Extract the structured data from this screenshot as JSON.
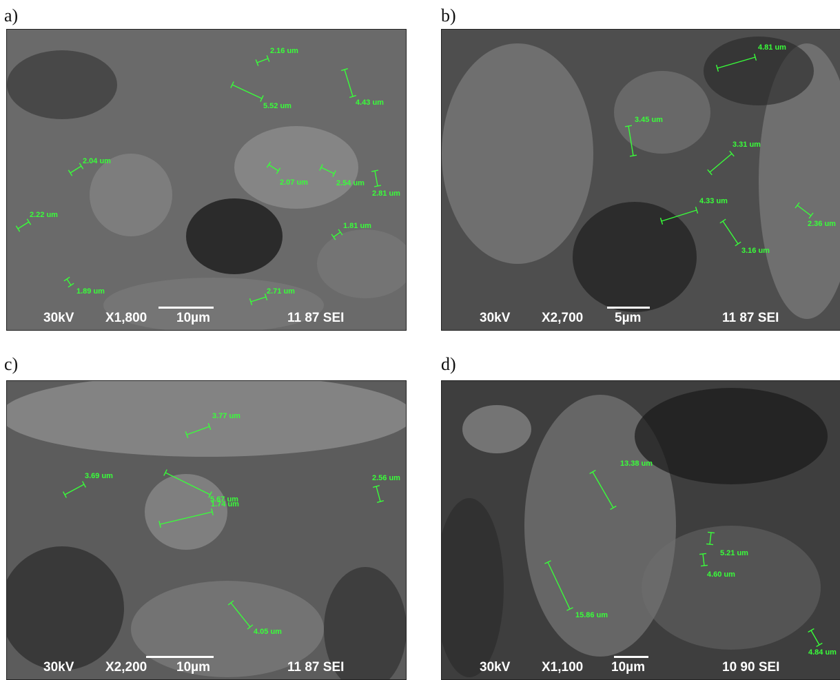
{
  "panels": [
    {
      "label": "a)",
      "voltage": "30kV",
      "magnification": "X1,800",
      "scale_bar": "10µm",
      "code": "11 87 SEI",
      "measurements": [
        "2.16 um",
        "5.52 um",
        "4.43 um",
        "2.04 um",
        "2.07 um",
        "2.54 um",
        "2.81 um",
        "2.22 um",
        "1.81 um",
        "1.89 um",
        "2.71 um"
      ]
    },
    {
      "label": "b)",
      "voltage": "30kV",
      "magnification": "X2,700",
      "scale_bar": "5µm",
      "code": "11 87 SEI",
      "measurements": [
        "4.81 um",
        "3.45 um",
        "3.31 um",
        "4.33 um",
        "2.36 um",
        "3.16 um"
      ]
    },
    {
      "label": "c)",
      "voltage": "30kV",
      "magnification": "X2,200",
      "scale_bar": "10µm",
      "code": "11 87 SEI",
      "measurements": [
        "3.77 um",
        "3.69 um",
        "5.67 um",
        "1.74 um",
        "2.56 um",
        "4.05 um"
      ]
    },
    {
      "label": "d)",
      "voltage": "30kV",
      "magnification": "X1,100",
      "scale_bar": "10µm",
      "code": "10 90 SEI",
      "measurements": [
        "13.38 um",
        "5.21 um",
        "4.60 um",
        "15.86 um",
        "4.84 um"
      ]
    }
  ],
  "colors": {
    "measurement": "#39ff3a",
    "info_text": "#ffffff"
  }
}
